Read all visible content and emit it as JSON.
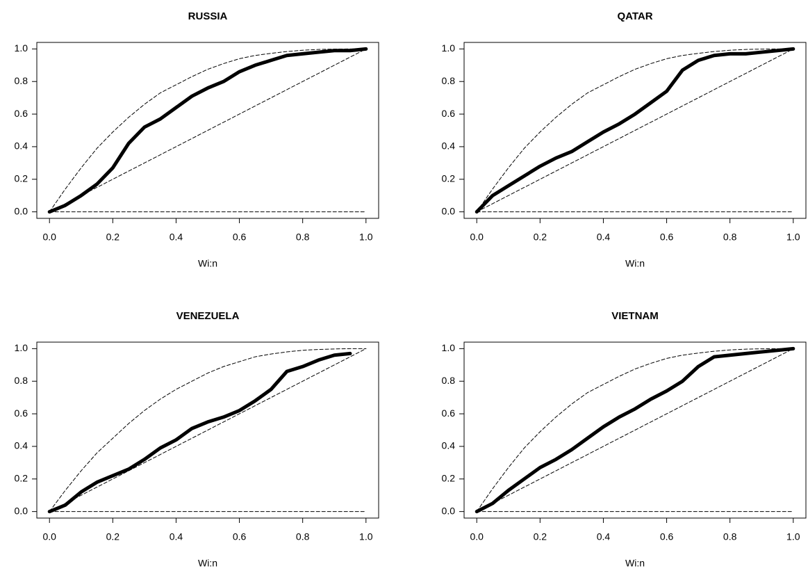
{
  "chart_data": [
    {
      "type": "line",
      "title": "RUSSIA",
      "xlabel": "Wi:n",
      "x": [
        0,
        0.05,
        0.1,
        0.15,
        0.2,
        0.25,
        0.3,
        0.35,
        0.4,
        0.45,
        0.5,
        0.55,
        0.6,
        0.65,
        0.7,
        0.75,
        0.8,
        0.85,
        0.9,
        0.95,
        1
      ],
      "series": [
        {
          "color": "#000000",
          "line_width": 5,
          "dashed": false,
          "values": [
            0,
            0.04,
            0.1,
            0.17,
            0.27,
            0.42,
            0.52,
            0.57,
            0.64,
            0.71,
            0.76,
            0.8,
            0.86,
            0.9,
            0.93,
            0.96,
            0.97,
            0.98,
            0.99,
            0.99,
            1
          ]
        },
        {
          "color": "#000000",
          "line_width": 1,
          "dashed": true,
          "values": [
            0,
            0.14,
            0.27,
            0.39,
            0.49,
            0.58,
            0.66,
            0.73,
            0.78,
            0.83,
            0.875,
            0.91,
            0.94,
            0.96,
            0.973,
            0.984,
            0.992,
            0.997,
            0.999,
            1,
            1
          ]
        },
        {
          "color": "#000000",
          "line_width": 1,
          "dashed": true,
          "values": [
            0,
            0.05,
            0.1,
            0.15,
            0.2,
            0.25,
            0.3,
            0.35,
            0.4,
            0.45,
            0.5,
            0.55,
            0.6,
            0.65,
            0.7,
            0.75,
            0.8,
            0.85,
            0.9,
            0.95,
            1
          ]
        },
        {
          "color": "#000000",
          "line_width": 1,
          "dashed": true,
          "values": [
            0,
            0,
            0,
            0,
            0,
            0,
            0,
            0,
            0,
            0,
            0,
            0,
            0,
            0,
            0,
            0,
            0,
            0,
            0,
            0,
            0
          ]
        }
      ],
      "xlim": [
        -0.04,
        1.04
      ],
      "ylim": [
        -0.04,
        1.04
      ],
      "xticks": [
        {
          "value": 0,
          "label": "0.0"
        },
        {
          "value": 0.2,
          "label": "0.2"
        },
        {
          "value": 0.4,
          "label": "0.4"
        },
        {
          "value": 0.6,
          "label": "0.6"
        },
        {
          "value": 0.8,
          "label": "0.8"
        },
        {
          "value": 1,
          "label": "1.0"
        }
      ],
      "yticks": [
        {
          "value": 0,
          "label": "0.0"
        },
        {
          "value": 0.2,
          "label": "0.2"
        },
        {
          "value": 0.4,
          "label": "0.4"
        },
        {
          "value": 0.6,
          "label": "0.6"
        },
        {
          "value": 0.8,
          "label": "0.8"
        },
        {
          "value": 1,
          "label": "1.0"
        }
      ]
    },
    {
      "type": "line",
      "title": "QATAR",
      "xlabel": "Wi:n",
      "x": [
        0,
        0.05,
        0.1,
        0.15,
        0.2,
        0.25,
        0.3,
        0.35,
        0.4,
        0.45,
        0.5,
        0.55,
        0.6,
        0.65,
        0.7,
        0.75,
        0.8,
        0.85,
        0.9,
        0.95,
        1
      ],
      "series": [
        {
          "color": "#000000",
          "line_width": 5,
          "dashed": false,
          "values": [
            0,
            0.1,
            0.16,
            0.22,
            0.28,
            0.33,
            0.37,
            0.43,
            0.49,
            0.54,
            0.6,
            0.67,
            0.74,
            0.87,
            0.93,
            0.96,
            0.97,
            0.97,
            0.98,
            0.99,
            1
          ]
        },
        {
          "color": "#000000",
          "line_width": 1,
          "dashed": true,
          "values": [
            0,
            0.14,
            0.27,
            0.39,
            0.49,
            0.58,
            0.66,
            0.73,
            0.78,
            0.83,
            0.875,
            0.91,
            0.94,
            0.96,
            0.973,
            0.984,
            0.992,
            0.997,
            0.999,
            1,
            1
          ]
        },
        {
          "color": "#000000",
          "line_width": 1,
          "dashed": true,
          "values": [
            0,
            0.05,
            0.1,
            0.15,
            0.2,
            0.25,
            0.3,
            0.35,
            0.4,
            0.45,
            0.5,
            0.55,
            0.6,
            0.65,
            0.7,
            0.75,
            0.8,
            0.85,
            0.9,
            0.95,
            1
          ]
        },
        {
          "color": "#000000",
          "line_width": 1,
          "dashed": true,
          "values": [
            0,
            0,
            0,
            0,
            0,
            0,
            0,
            0,
            0,
            0,
            0,
            0,
            0,
            0,
            0,
            0,
            0,
            0,
            0,
            0,
            0
          ]
        }
      ],
      "xlim": [
        -0.04,
        1.04
      ],
      "ylim": [
        -0.04,
        1.04
      ],
      "xticks": [
        {
          "value": 0,
          "label": "0.0"
        },
        {
          "value": 0.2,
          "label": "0.2"
        },
        {
          "value": 0.4,
          "label": "0.4"
        },
        {
          "value": 0.6,
          "label": "0.6"
        },
        {
          "value": 0.8,
          "label": "0.8"
        },
        {
          "value": 1,
          "label": "1.0"
        }
      ],
      "yticks": [
        {
          "value": 0,
          "label": "0.0"
        },
        {
          "value": 0.2,
          "label": "0.2"
        },
        {
          "value": 0.4,
          "label": "0.4"
        },
        {
          "value": 0.6,
          "label": "0.6"
        },
        {
          "value": 0.8,
          "label": "0.8"
        },
        {
          "value": 1,
          "label": "1.0"
        }
      ]
    },
    {
      "type": "line",
      "title": "VENEZUELA",
      "xlabel": "Wi:n",
      "x": [
        0,
        0.05,
        0.1,
        0.15,
        0.2,
        0.25,
        0.3,
        0.35,
        0.4,
        0.45,
        0.5,
        0.55,
        0.6,
        0.65,
        0.7,
        0.75,
        0.8,
        0.85,
        0.9,
        0.95,
        1
      ],
      "series": [
        {
          "color": "#000000",
          "line_width": 5,
          "dashed": false,
          "values": [
            0,
            0.04,
            0.12,
            0.18,
            0.22,
            0.26,
            0.32,
            0.39,
            0.44,
            0.51,
            0.55,
            0.58,
            0.62,
            0.68,
            0.75,
            0.86,
            0.89,
            0.93,
            0.96,
            0.97,
            null
          ]
        },
        {
          "color": "#000000",
          "line_width": 1,
          "dashed": true,
          "values": [
            0,
            0.13,
            0.25,
            0.36,
            0.45,
            0.54,
            0.62,
            0.69,
            0.75,
            0.8,
            0.85,
            0.89,
            0.92,
            0.95,
            0.967,
            0.98,
            0.99,
            0.995,
            0.998,
            1,
            1
          ]
        },
        {
          "color": "#000000",
          "line_width": 1,
          "dashed": true,
          "values": [
            0,
            0.05,
            0.1,
            0.15,
            0.2,
            0.25,
            0.3,
            0.35,
            0.4,
            0.45,
            0.5,
            0.55,
            0.6,
            0.65,
            0.7,
            0.75,
            0.8,
            0.85,
            0.9,
            0.95,
            1
          ]
        },
        {
          "color": "#000000",
          "line_width": 1,
          "dashed": true,
          "values": [
            0,
            0,
            0,
            0,
            0,
            0,
            0,
            0,
            0,
            0,
            0,
            0,
            0,
            0,
            0,
            0,
            0,
            0,
            0,
            0,
            0
          ]
        }
      ],
      "xlim": [
        -0.04,
        1.04
      ],
      "ylim": [
        -0.04,
        1.04
      ],
      "xticks": [
        {
          "value": 0,
          "label": "0.0"
        },
        {
          "value": 0.2,
          "label": "0.2"
        },
        {
          "value": 0.4,
          "label": "0.4"
        },
        {
          "value": 0.6,
          "label": "0.6"
        },
        {
          "value": 0.8,
          "label": "0.8"
        },
        {
          "value": 1,
          "label": "1.0"
        }
      ],
      "yticks": [
        {
          "value": 0,
          "label": "0.0"
        },
        {
          "value": 0.2,
          "label": "0.2"
        },
        {
          "value": 0.4,
          "label": "0.4"
        },
        {
          "value": 0.6,
          "label": "0.6"
        },
        {
          "value": 0.8,
          "label": "0.8"
        },
        {
          "value": 1,
          "label": "1.0"
        }
      ]
    },
    {
      "type": "line",
      "title": "VIETNAM",
      "xlabel": "Wi:n",
      "x": [
        0,
        0.05,
        0.1,
        0.15,
        0.2,
        0.25,
        0.3,
        0.35,
        0.4,
        0.45,
        0.5,
        0.55,
        0.6,
        0.65,
        0.7,
        0.75,
        0.8,
        0.85,
        0.9,
        0.95,
        1
      ],
      "series": [
        {
          "color": "#000000",
          "line_width": 5,
          "dashed": false,
          "values": [
            0,
            0.05,
            0.13,
            0.2,
            0.27,
            0.32,
            0.38,
            0.45,
            0.52,
            0.58,
            0.63,
            0.69,
            0.74,
            0.8,
            0.89,
            0.95,
            0.96,
            0.97,
            0.98,
            0.99,
            1
          ]
        },
        {
          "color": "#000000",
          "line_width": 1,
          "dashed": true,
          "values": [
            0,
            0.14,
            0.27,
            0.39,
            0.49,
            0.58,
            0.66,
            0.73,
            0.78,
            0.83,
            0.875,
            0.91,
            0.94,
            0.96,
            0.973,
            0.984,
            0.992,
            0.997,
            0.999,
            1,
            1
          ]
        },
        {
          "color": "#000000",
          "line_width": 1,
          "dashed": true,
          "values": [
            0,
            0.05,
            0.1,
            0.15,
            0.2,
            0.25,
            0.3,
            0.35,
            0.4,
            0.45,
            0.5,
            0.55,
            0.6,
            0.65,
            0.7,
            0.75,
            0.8,
            0.85,
            0.9,
            0.95,
            1
          ]
        },
        {
          "color": "#000000",
          "line_width": 1,
          "dashed": true,
          "values": [
            0,
            0,
            0,
            0,
            0,
            0,
            0,
            0,
            0,
            0,
            0,
            0,
            0,
            0,
            0,
            0,
            0,
            0,
            0,
            0,
            0
          ]
        }
      ],
      "xlim": [
        -0.04,
        1.04
      ],
      "ylim": [
        -0.04,
        1.04
      ],
      "xticks": [
        {
          "value": 0,
          "label": "0.0"
        },
        {
          "value": 0.2,
          "label": "0.2"
        },
        {
          "value": 0.4,
          "label": "0.4"
        },
        {
          "value": 0.6,
          "label": "0.6"
        },
        {
          "value": 0.8,
          "label": "0.8"
        },
        {
          "value": 1,
          "label": "1.0"
        }
      ],
      "yticks": [
        {
          "value": 0,
          "label": "0.0"
        },
        {
          "value": 0.2,
          "label": "0.2"
        },
        {
          "value": 0.4,
          "label": "0.4"
        },
        {
          "value": 0.6,
          "label": "0.6"
        },
        {
          "value": 0.8,
          "label": "0.8"
        },
        {
          "value": 1,
          "label": "1.0"
        }
      ]
    }
  ]
}
